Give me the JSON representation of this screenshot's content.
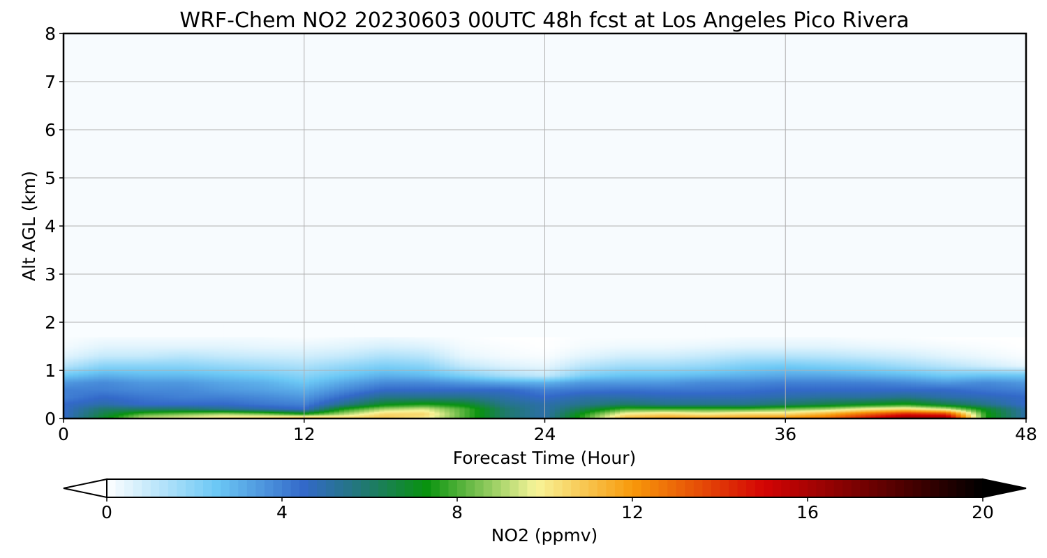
{
  "chart_data": {
    "type": "heatmap",
    "title": "WRF-Chem NO2  20230603 00UTC 48h fcst at Los Angeles Pico Rivera",
    "xlabel": "Forecast Time (Hour)",
    "ylabel": "Alt AGL (km)",
    "xlim": [
      0,
      48
    ],
    "ylim": [
      0,
      8
    ],
    "xticks": [
      0,
      12,
      24,
      36,
      48
    ],
    "yticks": [
      0,
      1,
      2,
      3,
      4,
      5,
      6,
      7,
      8
    ],
    "grid": true,
    "colorbar": {
      "label": "NO2  (ppmv)",
      "range": [
        0,
        20
      ],
      "ticks": [
        0,
        4,
        8,
        12,
        16,
        20
      ],
      "extend": "both",
      "stops": [
        {
          "v": 0,
          "c": "#ffffff"
        },
        {
          "v": 2.5,
          "c": "#6cc8f5"
        },
        {
          "v": 4.5,
          "c": "#3369c9"
        },
        {
          "v": 6,
          "c": "#1f7a6a"
        },
        {
          "v": 7.3,
          "c": "#09930f"
        },
        {
          "v": 9.8,
          "c": "#f8f59a"
        },
        {
          "v": 12,
          "c": "#f8990a"
        },
        {
          "v": 15,
          "c": "#d40404"
        },
        {
          "v": 18.5,
          "c": "#400000"
        },
        {
          "v": 20,
          "c": "#000000"
        }
      ]
    },
    "hours": [
      0,
      2,
      4,
      6,
      8,
      10,
      12,
      14,
      16,
      18,
      20,
      22,
      24,
      26,
      28,
      30,
      32,
      34,
      36,
      38,
      40,
      42,
      44,
      46,
      48
    ],
    "heights_km": [
      0,
      0.1,
      0.2,
      0.3,
      0.45,
      0.6,
      0.75,
      0.9,
      1.1,
      1.3,
      1.5,
      1.7
    ],
    "values_ppmv": [
      [
        4.5,
        7.0,
        9.5,
        10.0,
        10.5,
        11.0,
        12.0,
        11.0,
        11.0,
        10.0,
        8.0,
        6.0,
        5.0,
        8.0,
        11.5,
        12.0,
        12.0,
        12.0,
        12.5,
        13.0,
        15.0,
        17.0,
        17.0,
        7.5,
        5.0
      ],
      [
        4.5,
        6.5,
        8.0,
        8.5,
        9.0,
        8.5,
        7.5,
        9.0,
        10.5,
        10.5,
        8.0,
        6.0,
        5.0,
        7.5,
        10.0,
        10.5,
        10.0,
        10.5,
        10.5,
        11.5,
        13.0,
        14.5,
        14.0,
        7.5,
        5.0
      ],
      [
        4.5,
        6.0,
        6.0,
        6.0,
        5.5,
        5.0,
        4.5,
        7.5,
        9.0,
        9.5,
        8.0,
        6.0,
        5.0,
        6.5,
        8.0,
        8.0,
        8.0,
        8.0,
        8.5,
        9.0,
        10.0,
        10.5,
        9.5,
        7.0,
        5.0
      ],
      [
        4.5,
        5.0,
        4.5,
        4.5,
        4.5,
        4.2,
        4.0,
        5.5,
        7.0,
        7.5,
        7.0,
        5.5,
        5.0,
        5.5,
        6.0,
        5.5,
        5.5,
        5.5,
        6.0,
        6.5,
        7.0,
        7.5,
        6.5,
        5.5,
        4.5
      ],
      [
        4.0,
        4.5,
        4.2,
        4.0,
        4.0,
        3.8,
        3.5,
        4.5,
        5.5,
        5.5,
        5.5,
        5.0,
        4.5,
        5.0,
        5.0,
        4.8,
        4.8,
        4.8,
        5.0,
        5.2,
        5.2,
        5.5,
        5.0,
        4.8,
        4.5
      ],
      [
        4.0,
        4.0,
        3.8,
        3.8,
        3.5,
        3.3,
        3.0,
        3.8,
        4.5,
        4.5,
        4.5,
        4.5,
        4.0,
        4.2,
        4.3,
        4.2,
        4.2,
        4.3,
        4.5,
        4.5,
        4.5,
        4.5,
        4.5,
        4.2,
        4.0
      ],
      [
        3.5,
        3.8,
        3.5,
        3.5,
        3.2,
        3.0,
        2.5,
        3.2,
        3.8,
        3.8,
        3.5,
        3.2,
        3.0,
        3.5,
        3.5,
        3.5,
        3.8,
        3.8,
        4.0,
        4.0,
        4.0,
        3.8,
        3.5,
        3.8,
        3.5
      ],
      [
        2.5,
        3.0,
        2.8,
        2.8,
        2.6,
        2.4,
        2.0,
        2.5,
        3.0,
        2.8,
        2.2,
        1.5,
        1.0,
        2.2,
        2.6,
        2.6,
        2.8,
        3.0,
        3.2,
        3.2,
        3.0,
        2.8,
        2.4,
        2.6,
        2.5
      ],
      [
        1.2,
        2.0,
        2.0,
        2.0,
        1.8,
        1.6,
        1.4,
        1.8,
        2.2,
        2.0,
        1.0,
        0.6,
        0.4,
        1.2,
        1.6,
        1.6,
        1.8,
        2.2,
        2.4,
        2.2,
        2.0,
        1.6,
        1.2,
        0.8,
        0.4
      ],
      [
        0.5,
        1.0,
        1.0,
        1.2,
        1.0,
        0.9,
        0.8,
        1.0,
        1.4,
        1.2,
        0.4,
        0.2,
        0.1,
        0.5,
        0.8,
        0.8,
        1.0,
        1.3,
        1.3,
        1.2,
        1.0,
        0.8,
        0.5,
        0.3,
        0.1
      ],
      [
        0.2,
        0.5,
        0.5,
        0.5,
        0.5,
        0.4,
        0.4,
        0.5,
        0.7,
        0.6,
        0.2,
        0.1,
        0.0,
        0.2,
        0.3,
        0.3,
        0.4,
        0.5,
        0.5,
        0.5,
        0.4,
        0.3,
        0.2,
        0.1,
        0.0
      ],
      [
        0.1,
        0.2,
        0.2,
        0.2,
        0.2,
        0.2,
        0.1,
        0.2,
        0.3,
        0.2,
        0.1,
        0.0,
        0.0,
        0.1,
        0.1,
        0.1,
        0.1,
        0.2,
        0.2,
        0.2,
        0.1,
        0.1,
        0.0,
        0.0,
        0.0
      ]
    ],
    "background_value": 0.1
  }
}
